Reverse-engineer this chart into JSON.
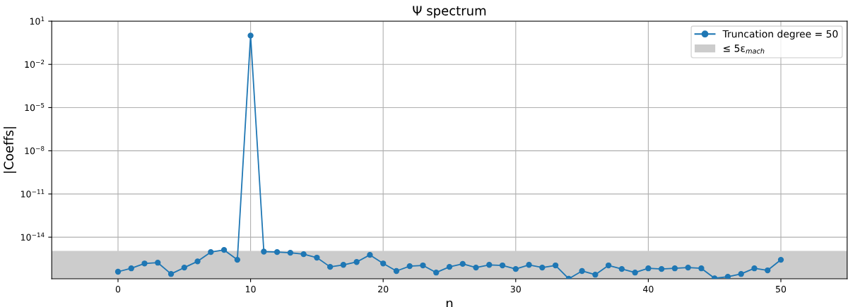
{
  "chart_data": {
    "type": "line",
    "title": "Ψ spectrum",
    "xlabel": "n",
    "ylabel": "|Coeffs|",
    "x": [
      0,
      1,
      2,
      3,
      4,
      5,
      6,
      7,
      8,
      9,
      10,
      11,
      12,
      13,
      14,
      15,
      16,
      17,
      18,
      19,
      20,
      21,
      22,
      23,
      24,
      25,
      26,
      27,
      28,
      29,
      30,
      31,
      32,
      33,
      34,
      35,
      36,
      37,
      38,
      39,
      40,
      41,
      42,
      43,
      44,
      45,
      46,
      47,
      48,
      49,
      50
    ],
    "series": [
      {
        "name": "Truncation degree = 50",
        "color": "#1f77b4",
        "values": [
          4e-17,
          6.9e-17,
          1.5e-16,
          1.7e-16,
          2.8e-17,
          7.8e-17,
          2.1e-16,
          9.3e-16,
          1.3e-15,
          2.7e-16,
          1,
          1e-15,
          9.3e-16,
          8.3e-16,
          6.6e-16,
          3.8e-16,
          8.7e-17,
          1.2e-16,
          1.9e-16,
          5.9e-16,
          1.5e-16,
          4.5e-17,
          9.8e-17,
          1.1e-16,
          3.5e-17,
          8.7e-17,
          1.4e-16,
          7.8e-17,
          1.2e-16,
          1.1e-16,
          6.2e-17,
          1.2e-16,
          7.8e-17,
          1.1e-16,
          1.3e-17,
          4.5e-17,
          2.5e-17,
          1.1e-16,
          6.2e-17,
          3.5e-17,
          6.9e-17,
          6.2e-17,
          6.9e-17,
          7.8e-17,
          6.9e-17,
          1.4e-17,
          1.8e-17,
          2.8e-17,
          6.9e-17,
          5e-17,
          2.7e-16
        ]
      }
    ],
    "log": "y",
    "xlim": [
      -5,
      55
    ],
    "xticks": [
      0,
      10,
      20,
      30,
      40,
      50
    ],
    "ylim": [
      1.3e-17,
      10
    ],
    "yticks": [
      {
        "value": 1e-14,
        "label": "10$^{−14}$"
      },
      {
        "value": 1e-11,
        "label": "10$^{−11}$"
      },
      {
        "value": 1e-08,
        "label": "10$^{−8}$"
      },
      {
        "value": 1e-05,
        "label": "10$^{−5}$"
      },
      {
        "value": 0.01,
        "label": "10$^{−2}$"
      },
      {
        "value": 10,
        "label": "10$^{1}$"
      }
    ],
    "bands": [
      {
        "axis": "y",
        "from": 1.3e-17,
        "to": 1.11e-15,
        "label": "≤ 5ε$_{mach}$",
        "color": "#cccccc"
      }
    ],
    "grid": true,
    "legend": "top right",
    "marker": "circle",
    "line_style": "solid"
  }
}
